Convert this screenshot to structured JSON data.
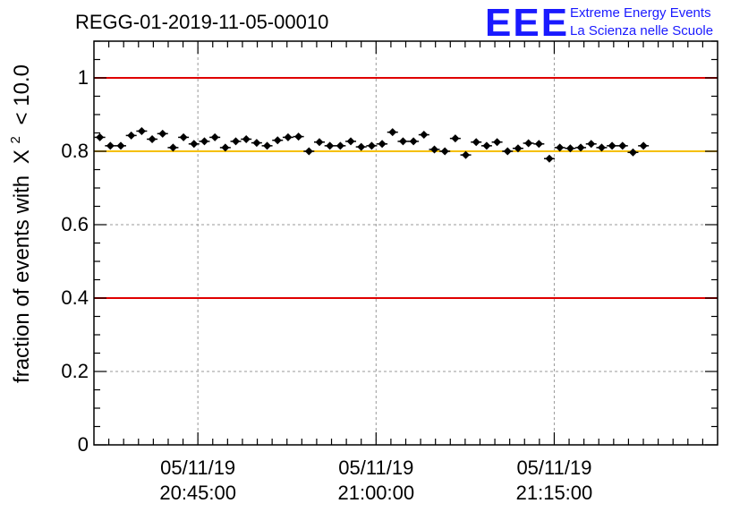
{
  "header": {
    "run_title": "REGG-01-2019-11-05-00010",
    "logo_text": "EEE",
    "logo_line1": "Extreme Energy Events",
    "logo_line2": "La Scienza nelle Scuole"
  },
  "colors": {
    "limit_line": "#e00000",
    "reference_line": "#f5c000",
    "logo": "#1a1aff",
    "markers": "#000000",
    "grid": "#999999"
  },
  "chart_data": {
    "type": "scatter",
    "title": "REGG-01-2019-11-05-00010",
    "ylabel_prefix": "fraction of events with",
    "ylabel_symbol": "X",
    "ylabel_sup": "2",
    "ylabel_suffix": "< 10.0",
    "xlabel": "",
    "xlim_minutes": [
      0,
      105
    ],
    "ylim": [
      0,
      1.1
    ],
    "yticks": [
      0,
      0.2,
      0.4,
      0.6,
      0.8,
      1
    ],
    "ytick_labels": [
      "0",
      "0.2",
      "0.4",
      "0.6",
      "0.8",
      "1"
    ],
    "xticks_minutes": [
      17.5,
      47.5,
      77.5
    ],
    "xtick_labels": [
      {
        "date": "05/11/19",
        "time": "20:45:00"
      },
      {
        "date": "05/11/19",
        "time": "21:00:00"
      },
      {
        "date": "05/11/19",
        "time": "21:15:00"
      }
    ],
    "grid": true,
    "hlines": [
      {
        "y": 1.0,
        "color": "#e00000"
      },
      {
        "y": 0.8,
        "color": "#f5c000"
      },
      {
        "y": 0.4,
        "color": "#e00000"
      }
    ],
    "series": [
      {
        "name": "fraction",
        "x_step_minutes": 1.76,
        "x_start_minutes": 1.0,
        "yerr": 0.008,
        "values": [
          0.838,
          0.815,
          0.815,
          0.843,
          0.855,
          0.833,
          0.848,
          0.81,
          0.838,
          0.82,
          0.827,
          0.838,
          0.81,
          0.827,
          0.833,
          0.823,
          0.815,
          0.83,
          0.838,
          0.84,
          0.8,
          0.825,
          0.815,
          0.815,
          0.827,
          0.812,
          0.815,
          0.82,
          0.852,
          0.827,
          0.827,
          0.845,
          0.805,
          0.8,
          0.835,
          0.79,
          0.825,
          0.815,
          0.825,
          0.8,
          0.808,
          0.822,
          0.82,
          0.78,
          0.81,
          0.808,
          0.81,
          0.82,
          0.81,
          0.815,
          0.815,
          0.797,
          0.815
        ]
      }
    ]
  }
}
